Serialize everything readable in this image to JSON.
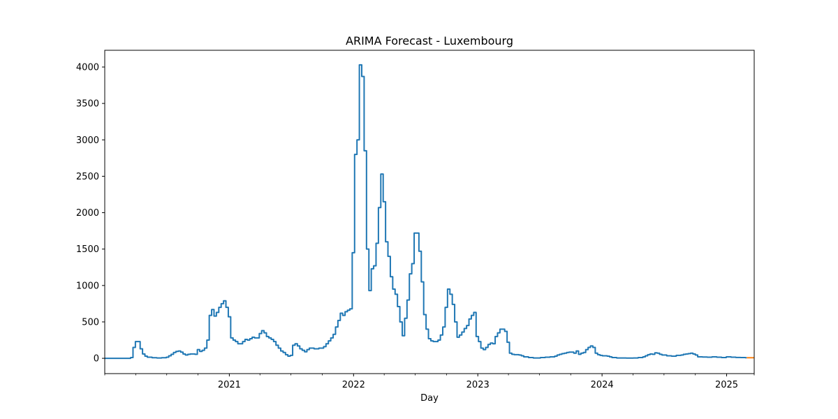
{
  "chart_data": {
    "type": "line",
    "title": "ARIMA Forecast - Luxembourg",
    "xlabel": "Day",
    "ylabel": "",
    "x_axis_type": "date",
    "xlim": [
      "2020-01-01",
      "2025-03-23"
    ],
    "ylim": [
      -210,
      4230
    ],
    "xticks": [
      {
        "label": "2021",
        "date": "2021-01-01"
      },
      {
        "label": "2022",
        "date": "2022-01-01"
      },
      {
        "label": "2023",
        "date": "2023-01-01"
      },
      {
        "label": "2024",
        "date": "2024-01-01"
      },
      {
        "label": "2025",
        "date": "2025-01-01"
      }
    ],
    "minor_xtick_dates": [
      "2020-01-01",
      "2020-04-01",
      "2020-07-01",
      "2020-10-01",
      "2021-04-01",
      "2021-07-01",
      "2021-10-01",
      "2022-04-01",
      "2022-07-01",
      "2022-10-01",
      "2023-04-01",
      "2023-07-01",
      "2023-10-01",
      "2024-04-01",
      "2024-07-01",
      "2024-10-01",
      "2025-03-23"
    ],
    "yticks": [
      0,
      500,
      1000,
      1500,
      2000,
      2500,
      3000,
      3500,
      4000
    ],
    "grid": false,
    "legend": "none",
    "series": [
      {
        "color": "#1f77b4",
        "step": true,
        "points": [
          [
            "2020-01-01",
            0
          ],
          [
            "2020-03-01",
            0
          ],
          [
            "2020-03-17",
            10
          ],
          [
            "2020-03-24",
            150
          ],
          [
            "2020-03-31",
            230
          ],
          [
            "2020-04-14",
            130
          ],
          [
            "2020-04-21",
            60
          ],
          [
            "2020-04-28",
            30
          ],
          [
            "2020-05-05",
            15
          ],
          [
            "2020-05-19",
            8
          ],
          [
            "2020-06-02",
            5
          ],
          [
            "2020-06-16",
            8
          ],
          [
            "2020-06-30",
            15
          ],
          [
            "2020-07-07",
            35
          ],
          [
            "2020-07-14",
            55
          ],
          [
            "2020-07-21",
            80
          ],
          [
            "2020-07-28",
            95
          ],
          [
            "2020-08-04",
            100
          ],
          [
            "2020-08-11",
            85
          ],
          [
            "2020-08-18",
            60
          ],
          [
            "2020-08-25",
            45
          ],
          [
            "2020-09-01",
            55
          ],
          [
            "2020-09-08",
            60
          ],
          [
            "2020-09-22",
            55
          ],
          [
            "2020-09-29",
            120
          ],
          [
            "2020-10-06",
            95
          ],
          [
            "2020-10-13",
            110
          ],
          [
            "2020-10-20",
            140
          ],
          [
            "2020-10-27",
            250
          ],
          [
            "2020-11-03",
            590
          ],
          [
            "2020-11-10",
            670
          ],
          [
            "2020-11-17",
            580
          ],
          [
            "2020-11-24",
            630
          ],
          [
            "2020-12-01",
            700
          ],
          [
            "2020-12-08",
            750
          ],
          [
            "2020-12-15",
            790
          ],
          [
            "2020-12-22",
            700
          ],
          [
            "2020-12-29",
            570
          ],
          [
            "2021-01-05",
            280
          ],
          [
            "2021-01-12",
            250
          ],
          [
            "2021-01-19",
            230
          ],
          [
            "2021-01-26",
            200
          ],
          [
            "2021-02-09",
            230
          ],
          [
            "2021-02-16",
            260
          ],
          [
            "2021-02-23",
            250
          ],
          [
            "2021-03-02",
            270
          ],
          [
            "2021-03-09",
            290
          ],
          [
            "2021-03-16",
            280
          ],
          [
            "2021-03-30",
            340
          ],
          [
            "2021-04-06",
            380
          ],
          [
            "2021-04-13",
            350
          ],
          [
            "2021-04-20",
            300
          ],
          [
            "2021-04-27",
            280
          ],
          [
            "2021-05-04",
            260
          ],
          [
            "2021-05-11",
            230
          ],
          [
            "2021-05-18",
            180
          ],
          [
            "2021-05-25",
            140
          ],
          [
            "2021-06-01",
            100
          ],
          [
            "2021-06-08",
            80
          ],
          [
            "2021-06-15",
            50
          ],
          [
            "2021-06-22",
            30
          ],
          [
            "2021-06-29",
            40
          ],
          [
            "2021-07-06",
            180
          ],
          [
            "2021-07-13",
            200
          ],
          [
            "2021-07-20",
            170
          ],
          [
            "2021-07-27",
            130
          ],
          [
            "2021-08-03",
            110
          ],
          [
            "2021-08-10",
            90
          ],
          [
            "2021-08-17",
            120
          ],
          [
            "2021-08-24",
            140
          ],
          [
            "2021-09-07",
            130
          ],
          [
            "2021-09-21",
            140
          ],
          [
            "2021-10-05",
            160
          ],
          [
            "2021-10-12",
            200
          ],
          [
            "2021-10-19",
            240
          ],
          [
            "2021-10-26",
            280
          ],
          [
            "2021-11-02",
            330
          ],
          [
            "2021-11-09",
            430
          ],
          [
            "2021-11-16",
            520
          ],
          [
            "2021-11-23",
            620
          ],
          [
            "2021-11-30",
            590
          ],
          [
            "2021-12-07",
            640
          ],
          [
            "2021-12-14",
            660
          ],
          [
            "2021-12-21",
            680
          ],
          [
            "2021-12-28",
            1450
          ],
          [
            "2022-01-04",
            2800
          ],
          [
            "2022-01-11",
            3000
          ],
          [
            "2022-01-18",
            4030
          ],
          [
            "2022-01-25",
            3870
          ],
          [
            "2022-02-01",
            2850
          ],
          [
            "2022-02-08",
            1500
          ],
          [
            "2022-02-15",
            930
          ],
          [
            "2022-02-22",
            1230
          ],
          [
            "2022-03-01",
            1270
          ],
          [
            "2022-03-08",
            1580
          ],
          [
            "2022-03-15",
            2070
          ],
          [
            "2022-03-22",
            2530
          ],
          [
            "2022-03-29",
            2150
          ],
          [
            "2022-04-05",
            1600
          ],
          [
            "2022-04-12",
            1400
          ],
          [
            "2022-04-19",
            1120
          ],
          [
            "2022-04-26",
            950
          ],
          [
            "2022-05-03",
            880
          ],
          [
            "2022-05-10",
            710
          ],
          [
            "2022-05-17",
            500
          ],
          [
            "2022-05-24",
            310
          ],
          [
            "2022-05-31",
            550
          ],
          [
            "2022-06-07",
            800
          ],
          [
            "2022-06-14",
            1160
          ],
          [
            "2022-06-21",
            1300
          ],
          [
            "2022-06-28",
            1720
          ],
          [
            "2022-07-12",
            1470
          ],
          [
            "2022-07-19",
            1050
          ],
          [
            "2022-07-26",
            600
          ],
          [
            "2022-08-02",
            400
          ],
          [
            "2022-08-09",
            270
          ],
          [
            "2022-08-16",
            240
          ],
          [
            "2022-08-23",
            230
          ],
          [
            "2022-09-06",
            250
          ],
          [
            "2022-09-13",
            320
          ],
          [
            "2022-09-20",
            430
          ],
          [
            "2022-09-27",
            700
          ],
          [
            "2022-10-04",
            950
          ],
          [
            "2022-10-11",
            880
          ],
          [
            "2022-10-18",
            740
          ],
          [
            "2022-10-25",
            500
          ],
          [
            "2022-11-01",
            290
          ],
          [
            "2022-11-08",
            320
          ],
          [
            "2022-11-15",
            360
          ],
          [
            "2022-11-22",
            410
          ],
          [
            "2022-11-29",
            450
          ],
          [
            "2022-12-06",
            540
          ],
          [
            "2022-12-13",
            590
          ],
          [
            "2022-12-20",
            630
          ],
          [
            "2022-12-27",
            300
          ],
          [
            "2023-01-03",
            230
          ],
          [
            "2023-01-10",
            140
          ],
          [
            "2023-01-17",
            120
          ],
          [
            "2023-01-24",
            150
          ],
          [
            "2023-01-31",
            190
          ],
          [
            "2023-02-07",
            210
          ],
          [
            "2023-02-14",
            200
          ],
          [
            "2023-02-21",
            300
          ],
          [
            "2023-02-28",
            350
          ],
          [
            "2023-03-07",
            400
          ],
          [
            "2023-03-21",
            370
          ],
          [
            "2023-03-28",
            220
          ],
          [
            "2023-04-04",
            70
          ],
          [
            "2023-04-11",
            55
          ],
          [
            "2023-04-18",
            50
          ],
          [
            "2023-05-02",
            45
          ],
          [
            "2023-05-09",
            35
          ],
          [
            "2023-05-16",
            20
          ],
          [
            "2023-05-30",
            10
          ],
          [
            "2023-06-13",
            5
          ],
          [
            "2023-07-04",
            10
          ],
          [
            "2023-07-18",
            15
          ],
          [
            "2023-08-01",
            20
          ],
          [
            "2023-08-15",
            30
          ],
          [
            "2023-08-22",
            45
          ],
          [
            "2023-08-29",
            55
          ],
          [
            "2023-09-05",
            65
          ],
          [
            "2023-09-12",
            70
          ],
          [
            "2023-09-19",
            80
          ],
          [
            "2023-09-26",
            85
          ],
          [
            "2023-10-10",
            70
          ],
          [
            "2023-10-17",
            100
          ],
          [
            "2023-10-24",
            55
          ],
          [
            "2023-10-31",
            70
          ],
          [
            "2023-11-07",
            80
          ],
          [
            "2023-11-14",
            120
          ],
          [
            "2023-11-21",
            150
          ],
          [
            "2023-11-28",
            170
          ],
          [
            "2023-12-05",
            150
          ],
          [
            "2023-12-12",
            70
          ],
          [
            "2023-12-19",
            50
          ],
          [
            "2023-12-26",
            40
          ],
          [
            "2024-01-02",
            35
          ],
          [
            "2024-01-16",
            30
          ],
          [
            "2024-01-23",
            20
          ],
          [
            "2024-01-30",
            10
          ],
          [
            "2024-02-13",
            5
          ],
          [
            "2024-03-12",
            3
          ],
          [
            "2024-04-02",
            5
          ],
          [
            "2024-04-16",
            10
          ],
          [
            "2024-04-30",
            20
          ],
          [
            "2024-05-07",
            35
          ],
          [
            "2024-05-14",
            50
          ],
          [
            "2024-05-21",
            60
          ],
          [
            "2024-05-28",
            55
          ],
          [
            "2024-06-04",
            75
          ],
          [
            "2024-06-11",
            70
          ],
          [
            "2024-06-18",
            55
          ],
          [
            "2024-06-25",
            45
          ],
          [
            "2024-07-09",
            35
          ],
          [
            "2024-07-23",
            30
          ],
          [
            "2024-08-06",
            40
          ],
          [
            "2024-08-20",
            45
          ],
          [
            "2024-08-27",
            55
          ],
          [
            "2024-09-03",
            60
          ],
          [
            "2024-09-10",
            65
          ],
          [
            "2024-09-17",
            70
          ],
          [
            "2024-09-24",
            60
          ],
          [
            "2024-10-01",
            45
          ],
          [
            "2024-10-08",
            20
          ],
          [
            "2024-10-22",
            18
          ],
          [
            "2024-11-05",
            15
          ],
          [
            "2024-11-19",
            20
          ],
          [
            "2024-12-03",
            15
          ],
          [
            "2024-12-17",
            10
          ],
          [
            "2024-12-31",
            20
          ],
          [
            "2025-01-14",
            15
          ],
          [
            "2025-01-28",
            12
          ],
          [
            "2025-02-11",
            10
          ],
          [
            "2025-02-25",
            8
          ],
          [
            "2025-03-01",
            8
          ]
        ]
      },
      {
        "color": "#ff7f0e",
        "step": false,
        "points": [
          [
            "2025-03-01",
            8
          ],
          [
            "2025-03-23",
            8
          ]
        ]
      }
    ]
  }
}
